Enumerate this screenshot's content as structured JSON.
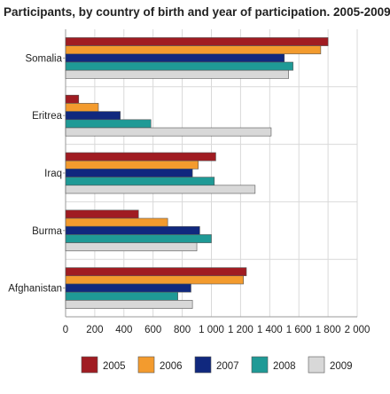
{
  "chart_data": {
    "type": "bar",
    "orientation": "horizontal",
    "title": "Participants, by country of birth and year of participation. 2005-2009",
    "categories": [
      "Somalia",
      "Eritrea",
      "Iraq",
      "Burma",
      "Afghanistan"
    ],
    "series": [
      {
        "name": "2005",
        "color": "#a01c22",
        "values": [
          1800,
          90,
          1030,
          500,
          1240
        ]
      },
      {
        "name": "2006",
        "color": "#f39b2e",
        "values": [
          1750,
          225,
          910,
          700,
          1220
        ]
      },
      {
        "name": "2007",
        "color": "#10287e",
        "values": [
          1500,
          375,
          870,
          920,
          860
        ]
      },
      {
        "name": "2008",
        "color": "#1f9a96",
        "values": [
          1560,
          585,
          1020,
          1000,
          770
        ]
      },
      {
        "name": "2009",
        "color": "#d8d8d8",
        "values": [
          1530,
          1410,
          1300,
          900,
          870
        ]
      }
    ],
    "xlim": [
      0,
      2000
    ],
    "xticks": [
      0,
      200,
      400,
      600,
      800,
      1000,
      1200,
      1400,
      1600,
      1800,
      2000
    ],
    "xtick_labels": [
      "0",
      "200",
      "400",
      "600",
      "800",
      "1 000",
      "1 200",
      "1 400",
      "1 600",
      "1 800",
      "2 000"
    ],
    "grid": true,
    "legend_position": "bottom"
  }
}
